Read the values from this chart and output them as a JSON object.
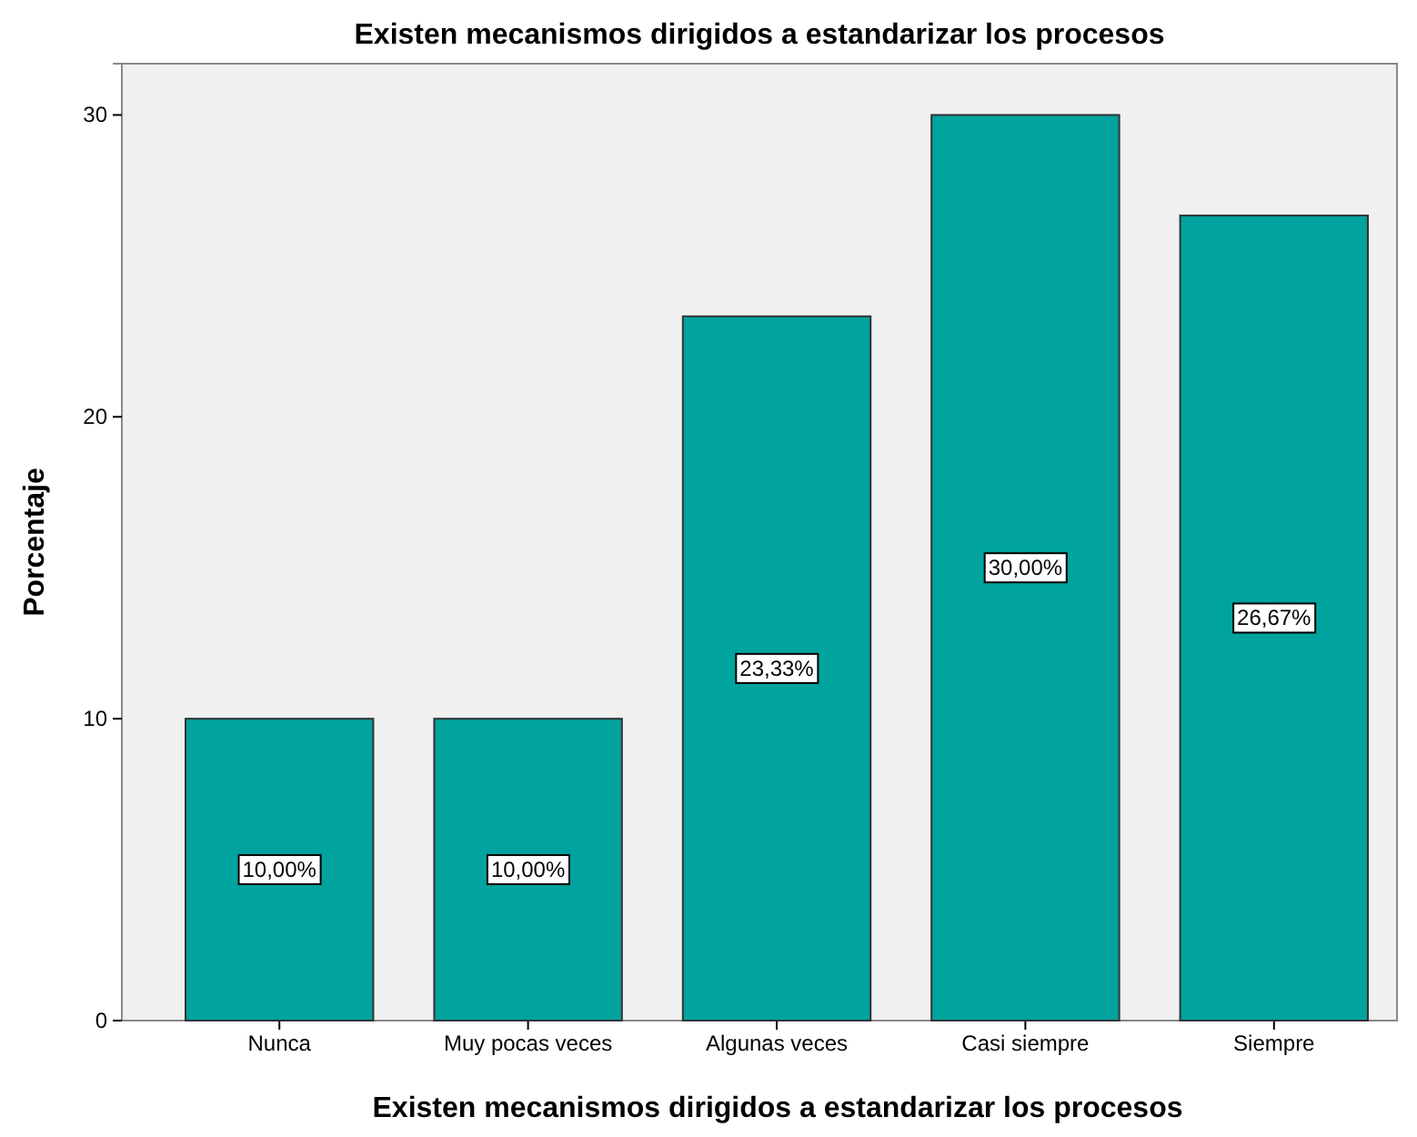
{
  "chart_data": {
    "type": "bar",
    "title": "Existen mecanismos dirigidos a estandarizar los procesos",
    "xlabel": "Existen mecanismos dirigidos a estandarizar los procesos",
    "ylabel": "Porcentaje",
    "categories": [
      "Nunca",
      "Muy pocas veces",
      "Algunas veces",
      "Casi siempre",
      "Siempre"
    ],
    "values": [
      10.0,
      10.0,
      23.33,
      30.0,
      26.67
    ],
    "value_labels": [
      "10,00%",
      "10,00%",
      "23,33%",
      "30,00%",
      "26,67%"
    ],
    "color": "#00a39e",
    "ylim": [
      0,
      31.7
    ],
    "yticks": [
      0,
      10,
      20,
      30
    ]
  }
}
